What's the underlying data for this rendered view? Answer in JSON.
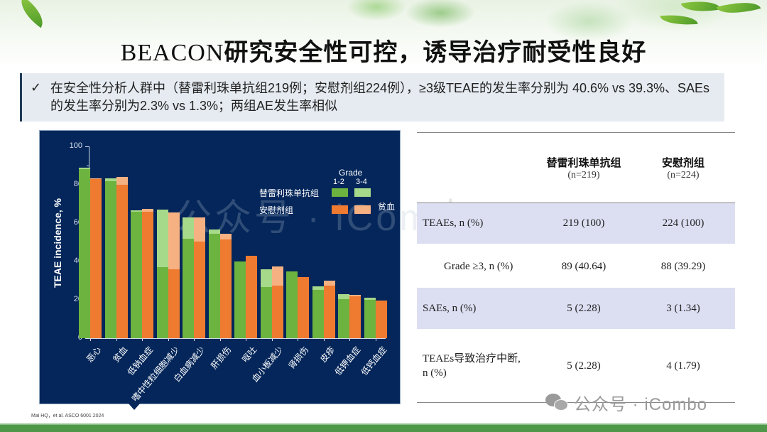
{
  "header": {
    "title_latin": "BEACON",
    "title_cn": "研究安全性可控，诱导治疗耐受性良好"
  },
  "bullet": {
    "icon": "check-icon",
    "check_glyph": "✓",
    "text": "在安全性分析人群中（替雷利珠单抗组219例；安慰剂组224例），≥3级TEAE的发生率分别为 40.6% vs 39.3%、SAEs的发生率分别为2.3% vs 1.3%；两组AE发生率相似"
  },
  "colors": {
    "chart_bg": "#04265a",
    "tisle_g12": "#6db33f",
    "tisle_g34": "#a6d98a",
    "placebo_g12": "#ef7b30",
    "placebo_g34": "#f6b183",
    "table_shade": "#dcdff2",
    "footer_green": "#4f9748"
  },
  "chart_data": {
    "type": "bar",
    "subtype": "grouped-stacked",
    "title": "",
    "xlabel": "",
    "ylabel": "TEAE incidence, %",
    "ylim": [
      0,
      100
    ],
    "yticks": [
      0,
      20,
      40,
      60,
      80,
      100
    ],
    "grid": false,
    "legend": {
      "position": "upper-right",
      "header": "Grade",
      "columns": [
        "1-2",
        "3-4"
      ],
      "entries": [
        "替雷利珠单抗组",
        "安慰剂组"
      ],
      "note": "贫血"
    },
    "categories": [
      "恶心",
      "贫血",
      "低钠血症",
      "嗜中性粒细胞减少",
      "白血病减少",
      "肝损伤",
      "呕吐",
      "血小板减少",
      "肾损伤",
      "皮疹",
      "低钾血症",
      "低钙血症"
    ],
    "series": [
      {
        "name": "替雷利珠单抗组 Grade 1-2",
        "values": [
          88,
          82,
          66,
          37,
          52,
          54.5,
          40,
          26.5,
          35,
          25,
          20.5,
          20
        ]
      },
      {
        "name": "替雷利珠单抗组 Grade 3-4",
        "values": [
          1,
          1.5,
          0.5,
          30,
          11,
          2,
          0,
          9.5,
          0,
          2,
          2.5,
          1
        ]
      },
      {
        "name": "安慰剂组 Grade 1-2",
        "values": [
          83,
          80,
          66,
          36,
          50.5,
          51.5,
          43,
          27.5,
          32,
          27.5,
          22,
          19.5
        ]
      },
      {
        "name": "安慰剂组 Grade 3-4",
        "values": [
          0.5,
          4,
          1.5,
          29.5,
          12.5,
          3,
          0,
          10,
          0,
          2.5,
          0.5,
          0
        ]
      }
    ],
    "totals": {
      "替雷利珠单抗组": [
        89,
        83.5,
        66.5,
        67,
        63,
        56.5,
        40,
        36,
        35,
        27,
        23,
        21
      ],
      "安慰剂组": [
        83.5,
        84,
        67.5,
        65.5,
        63,
        54.5,
        43,
        37.5,
        32,
        30,
        22.5,
        19.5
      ]
    }
  },
  "chart": {
    "y_title": "TEAE incidence, %",
    "y_labels": [
      "100",
      "80",
      "60",
      "40",
      "20",
      "0"
    ],
    "legend_grade": "Grade",
    "legend_g12": "1-2",
    "legend_g34": "3-4",
    "legend_tisle": "替雷利珠单抗组",
    "legend_placebo": "安慰剂组",
    "legend_anemia": "贫血",
    "watermark": "公众号 · iCombo"
  },
  "citation": "Mai HQ，et al. ASCO 6001 2024",
  "table": {
    "headers": [
      {
        "name": "替雷利珠单抗组",
        "n": "(n=219)"
      },
      {
        "name": "安慰剂组",
        "n": "(n=224)"
      }
    ],
    "rows": [
      {
        "label": "TEAEs, n (%)",
        "v1": "219 (100)",
        "v2": "224 (100)"
      },
      {
        "label": "Grade ≥3, n (%)",
        "v1": "89 (40.64)",
        "v2": "88 (39.29)"
      },
      {
        "label": "SAEs, n (%)",
        "v1": "5 (2.28)",
        "v2": "3 (1.34)"
      },
      {
        "label": "TEAEs导致治疗中断, n (%)",
        "label_line1": "TEAEs导致治疗中断,",
        "label_line2": "n (%)",
        "v1": "5 (2.28)",
        "v2": "4 (1.79)"
      }
    ],
    "watermark": "mbo"
  },
  "footer": {
    "watermark": "公众号 · iCombo"
  }
}
